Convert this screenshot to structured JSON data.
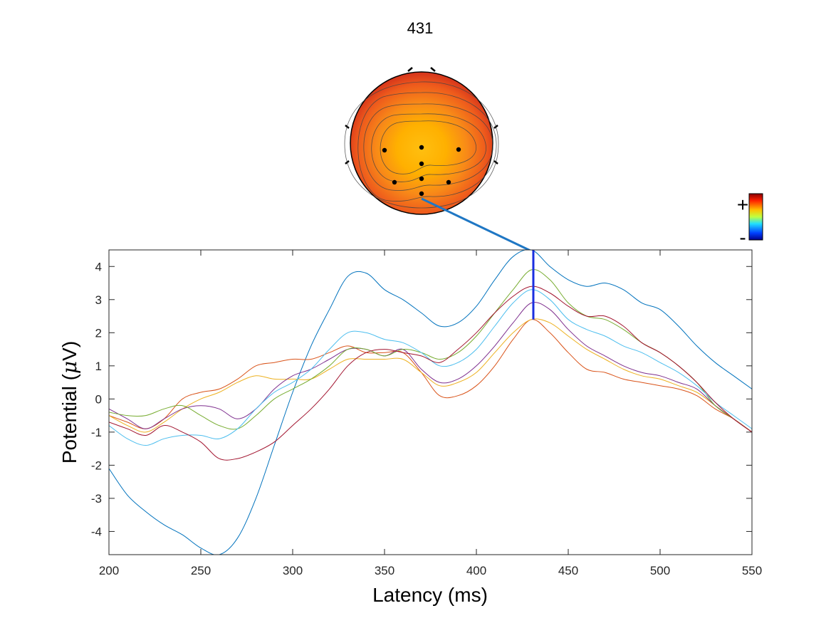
{
  "figure": {
    "title": "431",
    "colorbar": {
      "plus_label": "+",
      "minus_label": "-"
    }
  },
  "chart_data": {
    "type": "line",
    "xlabel": "Latency (ms)",
    "ylabel_main": "Potential (",
    "ylabel_mu": "μ",
    "ylabel_end": "V)",
    "xlim": [
      200,
      550
    ],
    "ylim": [
      -4.7,
      4.5
    ],
    "xticks": [
      200,
      250,
      300,
      350,
      400,
      450,
      500,
      550
    ],
    "yticks": [
      -4,
      -3,
      -2,
      -1,
      0,
      1,
      2,
      3,
      4
    ],
    "marker_latency": 431,
    "marker_range": [
      2.4,
      4.5
    ],
    "x": [
      200,
      210,
      220,
      230,
      240,
      250,
      260,
      270,
      280,
      290,
      300,
      310,
      320,
      330,
      340,
      350,
      360,
      370,
      380,
      390,
      400,
      410,
      420,
      430,
      440,
      450,
      460,
      470,
      480,
      490,
      500,
      510,
      520,
      530,
      540,
      550
    ],
    "series": [
      {
        "color": "#0072BD",
        "values": [
          -2.1,
          -2.9,
          -3.4,
          -3.8,
          -4.1,
          -4.5,
          -4.7,
          -4.2,
          -3.0,
          -1.4,
          0.2,
          1.6,
          2.7,
          3.7,
          3.8,
          3.3,
          3.0,
          2.6,
          2.2,
          2.3,
          2.8,
          3.6,
          4.3,
          4.5,
          4.0,
          3.6,
          3.4,
          3.5,
          3.3,
          2.9,
          2.7,
          2.2,
          1.6,
          1.1,
          0.7,
          0.3
        ]
      },
      {
        "color": "#D95319",
        "values": [
          -0.5,
          -0.7,
          -0.9,
          -0.6,
          0.0,
          0.2,
          0.3,
          0.6,
          1.0,
          1.1,
          1.2,
          1.2,
          1.4,
          1.6,
          1.4,
          1.4,
          1.4,
          0.8,
          0.1,
          0.1,
          0.4,
          1.0,
          1.8,
          2.4,
          2.0,
          1.4,
          0.9,
          0.8,
          0.6,
          0.5,
          0.4,
          0.3,
          0.1,
          -0.3,
          -0.6,
          -1.0
        ]
      },
      {
        "color": "#EDB120",
        "values": [
          -0.5,
          -0.8,
          -1.0,
          -0.7,
          -0.3,
          0.0,
          0.2,
          0.5,
          0.7,
          0.6,
          0.6,
          0.6,
          0.9,
          1.2,
          1.2,
          1.2,
          1.2,
          0.8,
          0.4,
          0.5,
          0.8,
          1.4,
          2.0,
          2.4,
          2.3,
          1.9,
          1.5,
          1.2,
          0.9,
          0.7,
          0.6,
          0.4,
          0.2,
          -0.2,
          -0.6,
          -1.0
        ]
      },
      {
        "color": "#7E2F8E",
        "values": [
          -0.3,
          -0.6,
          -0.9,
          -0.6,
          -0.3,
          -0.2,
          -0.3,
          -0.6,
          -0.3,
          0.3,
          0.7,
          0.9,
          1.2,
          1.5,
          1.5,
          1.3,
          1.5,
          0.9,
          0.5,
          0.6,
          1.0,
          1.6,
          2.3,
          2.9,
          2.7,
          2.1,
          1.6,
          1.3,
          1.0,
          0.8,
          0.7,
          0.5,
          0.3,
          -0.2,
          -0.6,
          -1.0
        ]
      },
      {
        "color": "#77AC30",
        "values": [
          -0.4,
          -0.5,
          -0.5,
          -0.3,
          -0.2,
          -0.5,
          -0.8,
          -0.9,
          -0.5,
          0.0,
          0.3,
          0.6,
          1.0,
          1.5,
          1.5,
          1.3,
          1.5,
          1.4,
          1.2,
          1.4,
          1.9,
          2.6,
          3.3,
          3.9,
          3.6,
          2.9,
          2.5,
          2.4,
          2.1,
          1.7,
          1.4,
          1.0,
          0.5,
          -0.2,
          -0.6,
          -1.0
        ]
      },
      {
        "color": "#4DBEEE",
        "values": [
          -0.8,
          -1.2,
          -1.4,
          -1.2,
          -1.1,
          -1.1,
          -1.2,
          -0.9,
          -0.3,
          0.2,
          0.5,
          0.9,
          1.5,
          2.0,
          2.0,
          1.8,
          1.7,
          1.4,
          1.0,
          1.1,
          1.5,
          2.2,
          2.9,
          3.3,
          3.0,
          2.4,
          2.1,
          1.9,
          1.6,
          1.4,
          1.1,
          0.8,
          0.4,
          -0.1,
          -0.5,
          -0.9
        ]
      },
      {
        "color": "#A2142F",
        "values": [
          -0.7,
          -0.9,
          -1.1,
          -0.8,
          -1.0,
          -1.3,
          -1.8,
          -1.8,
          -1.6,
          -1.3,
          -0.8,
          -0.3,
          0.3,
          1.0,
          1.4,
          1.5,
          1.4,
          1.3,
          1.1,
          1.5,
          2.0,
          2.6,
          3.1,
          3.4,
          3.2,
          2.8,
          2.5,
          2.5,
          2.2,
          1.7,
          1.4,
          1.0,
          0.5,
          -0.1,
          -0.6,
          -1.0
        ]
      }
    ]
  }
}
